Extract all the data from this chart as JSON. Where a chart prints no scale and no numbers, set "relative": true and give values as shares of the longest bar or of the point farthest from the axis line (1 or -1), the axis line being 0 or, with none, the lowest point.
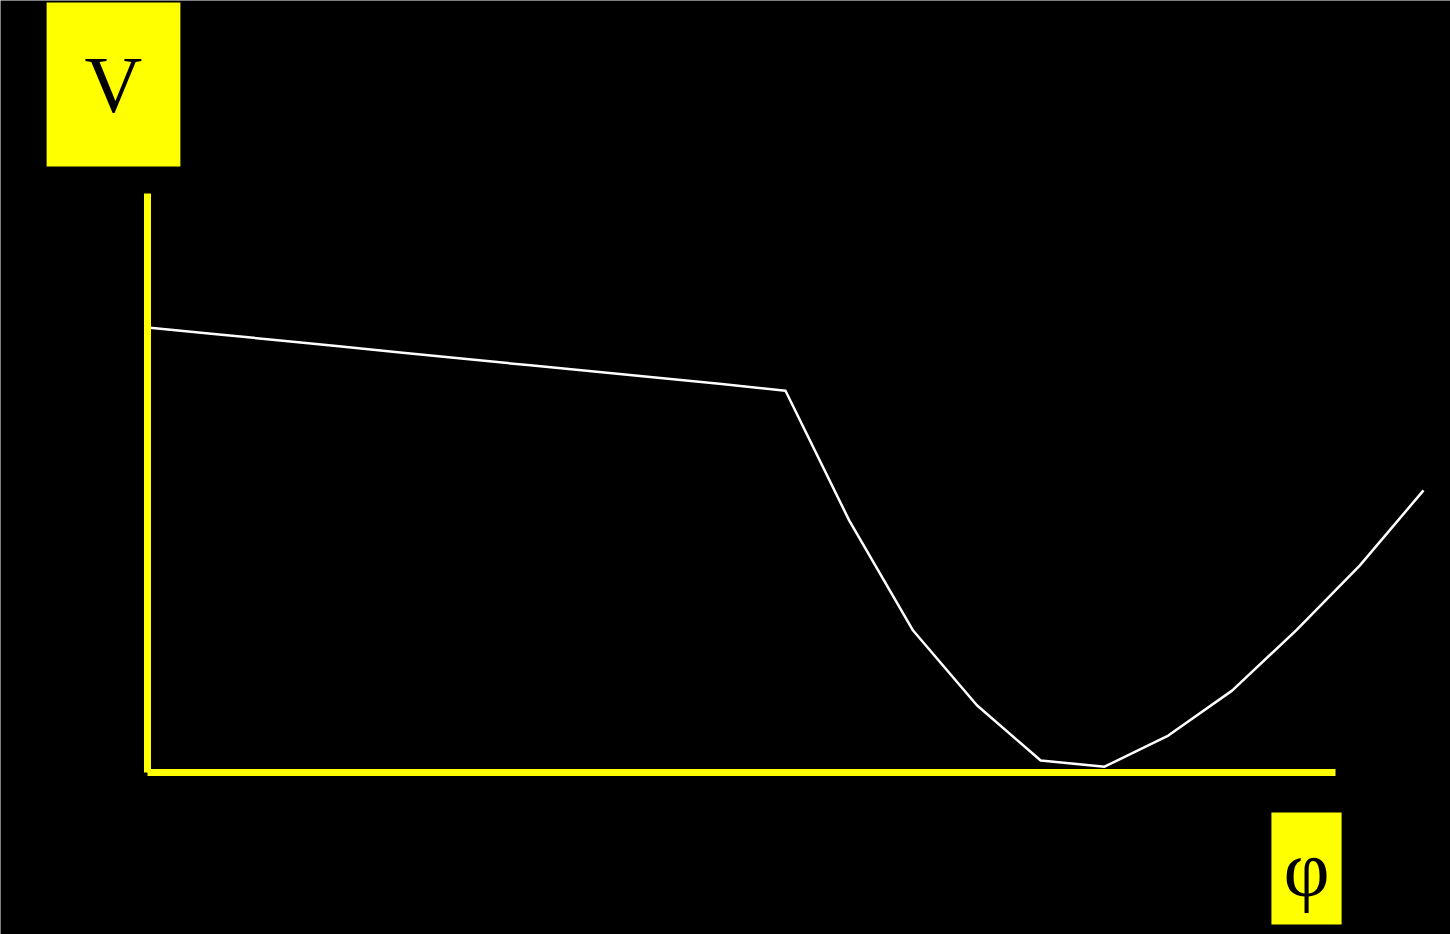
{
  "chart_data": {
    "type": "line",
    "relative": true,
    "xlabel": "φ",
    "ylabel": "V",
    "categories": [
      null,
      null,
      null,
      null,
      null,
      null,
      null,
      null,
      null,
      null,
      null,
      null,
      null,
      null,
      null,
      null,
      null,
      null,
      null,
      null,
      null
    ],
    "series": [
      {
        "color": "#ffffff",
        "values": [
          1,
          0.986,
          0.972,
          0.958,
          0.943,
          0.929,
          0.915,
          0.901,
          0.887,
          0.873,
          0.858,
          0.566,
          0.319,
          0.151,
          0.027,
          0.013,
          0.083,
          0.184,
          0.319,
          0.465,
          0.634
        ]
      }
    ],
    "grid": false,
    "marker": "none",
    "line_style": "solid"
  }
}
